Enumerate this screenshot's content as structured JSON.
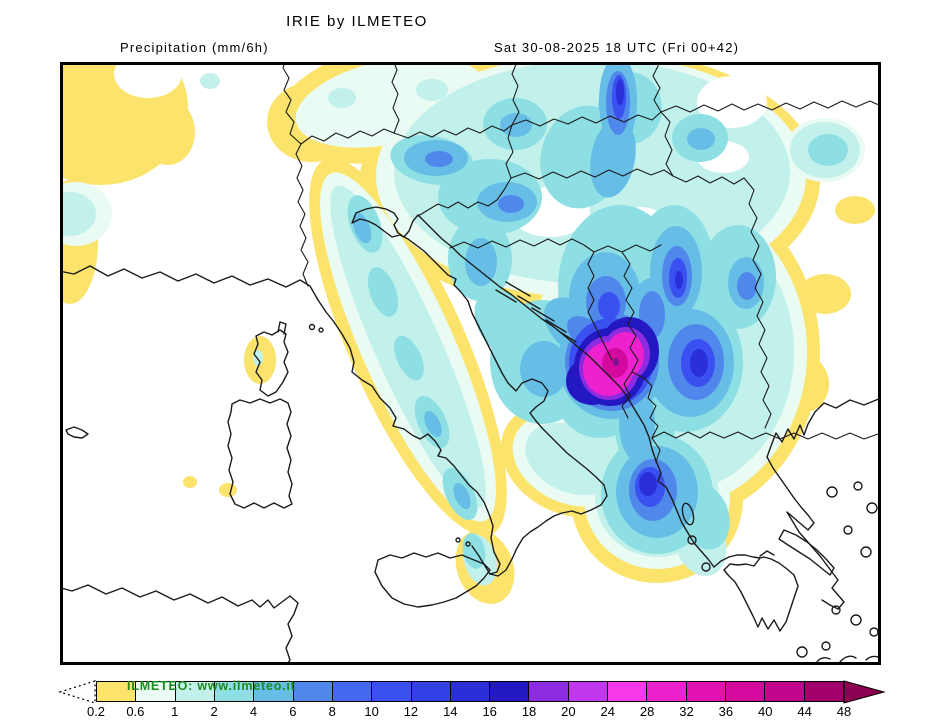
{
  "header": {
    "title": "IRIE by ILMETEO",
    "subtitle_left": "Precipitation (mm/6h)",
    "subtitle_right": "Sat 30-08-2025 18 UTC (Fri 00+42)"
  },
  "watermark": {
    "text": "ILMETEO: www.ilmeteo.it",
    "color": "#1C8A1C"
  },
  "map": {
    "units": "mm/6h",
    "coast_color": "#1b1b1b",
    "palette": {
      "level_0_2": "#FCE36B",
      "level_0_6": "#E9FBF3",
      "level_1": "#C2F1EB",
      "level_2": "#8EDFE4",
      "level_4": "#66BEE7",
      "level_6": "#4F87EB",
      "level_8": "#4468F2",
      "level_10": "#3A50F0",
      "level_12": "#3340E6",
      "level_14": "#2B2FD8",
      "level_16": "#2418C2",
      "level_18": "#8C2BE0",
      "level_20": "#C238EE",
      "level_24": "#F83BEA",
      "level_28": "#EE21CE",
      "level_32": "#E212B2",
      "level_36": "#D40A9E",
      "level_40": "#C2058B",
      "level_44": "#A4006B",
      "core_dot": "#7C1092",
      "overflow": "#8C0052"
    }
  },
  "colorbar": {
    "tick_labels": [
      "0.2",
      "0.6",
      "1",
      "2",
      "4",
      "6",
      "8",
      "10",
      "12",
      "14",
      "16",
      "18",
      "20",
      "24",
      "28",
      "32",
      "36",
      "40",
      "44",
      "48"
    ],
    "cell_colors": [
      "#FCE36B",
      "#E9FBF3",
      "#C2F1EB",
      "#8EDFE4",
      "#66BEE7",
      "#4F87EB",
      "#4468F2",
      "#3A50F0",
      "#3340E6",
      "#2B2FD8",
      "#2418C2",
      "#8C2BE0",
      "#C238EE",
      "#F83BEA",
      "#EE21CE",
      "#E212B2",
      "#D40A9E",
      "#C2058B",
      "#A4006B"
    ],
    "underflow_style": "dotted-open-arrow",
    "overflow_color": "#8C0052"
  }
}
